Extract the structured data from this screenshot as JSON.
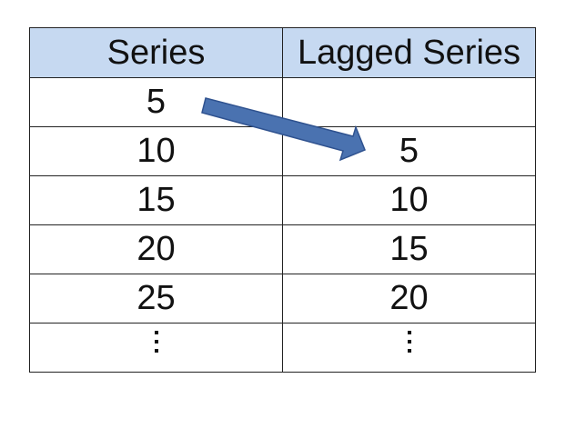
{
  "table": {
    "headers": [
      "Series",
      "Lagged Series"
    ],
    "rows": [
      [
        "5",
        ""
      ],
      [
        "10",
        "5"
      ],
      [
        "15",
        "10"
      ],
      [
        "20",
        "15"
      ],
      [
        "25",
        "20"
      ]
    ],
    "continuation": "⋮"
  },
  "arrow": {
    "color": "#4a72b0",
    "outline": "#2f528f"
  }
}
